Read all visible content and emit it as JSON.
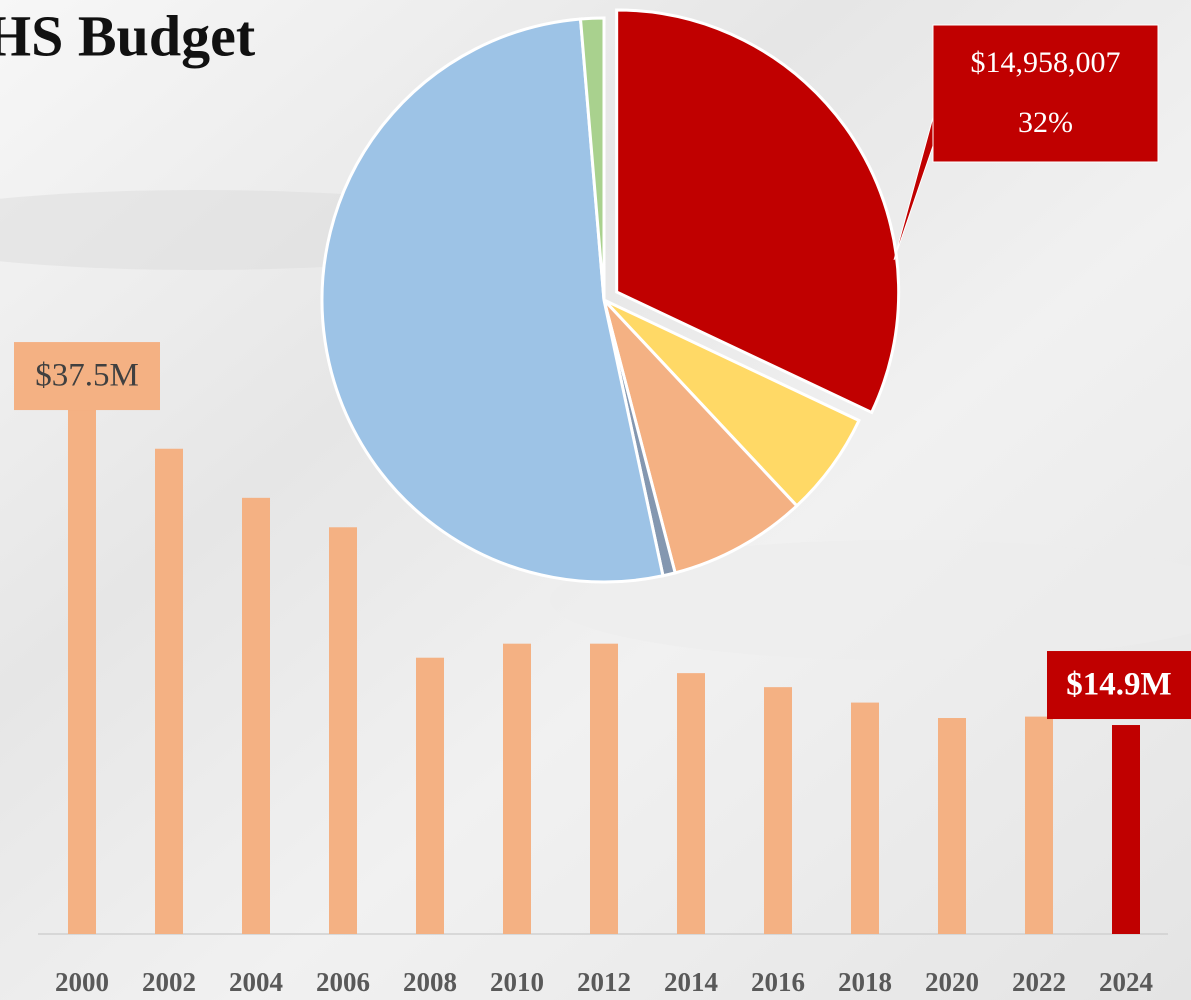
{
  "title": "HS Budget",
  "chart_data": [
    {
      "type": "bar",
      "categories": [
        "2000",
        "2002",
        "2004",
        "2006",
        "2008",
        "2010",
        "2012",
        "2014",
        "2016",
        "2018",
        "2020",
        "2022",
        "2024"
      ],
      "values": [
        37.5,
        34.6,
        31.1,
        29.0,
        19.7,
        20.7,
        20.7,
        18.6,
        17.6,
        16.5,
        15.4,
        15.5,
        14.9
      ],
      "value_labels": [
        "$37.5M",
        null,
        null,
        null,
        null,
        null,
        null,
        null,
        null,
        null,
        null,
        null,
        "$14.9M"
      ],
      "colors": [
        "#f4b183",
        "#f4b183",
        "#f4b183",
        "#f4b183",
        "#f4b183",
        "#f4b183",
        "#f4b183",
        "#f4b183",
        "#f4b183",
        "#f4b183",
        "#f4b183",
        "#f4b183",
        "#c00000"
      ],
      "ylim": [
        0,
        40
      ]
    },
    {
      "type": "pie",
      "values": [
        14958007,
        2800000,
        3700000,
        330000,
        24300000,
        620000
      ],
      "value_labels": [
        "$14,958,007",
        null,
        null,
        null,
        null,
        null
      ],
      "percent_labels": [
        "32%",
        null,
        null,
        null,
        null,
        null
      ],
      "colors": [
        "#c00000",
        "#ffd966",
        "#f4b183",
        "#8497b0",
        "#9dc3e6",
        "#a9d18e"
      ]
    }
  ]
}
